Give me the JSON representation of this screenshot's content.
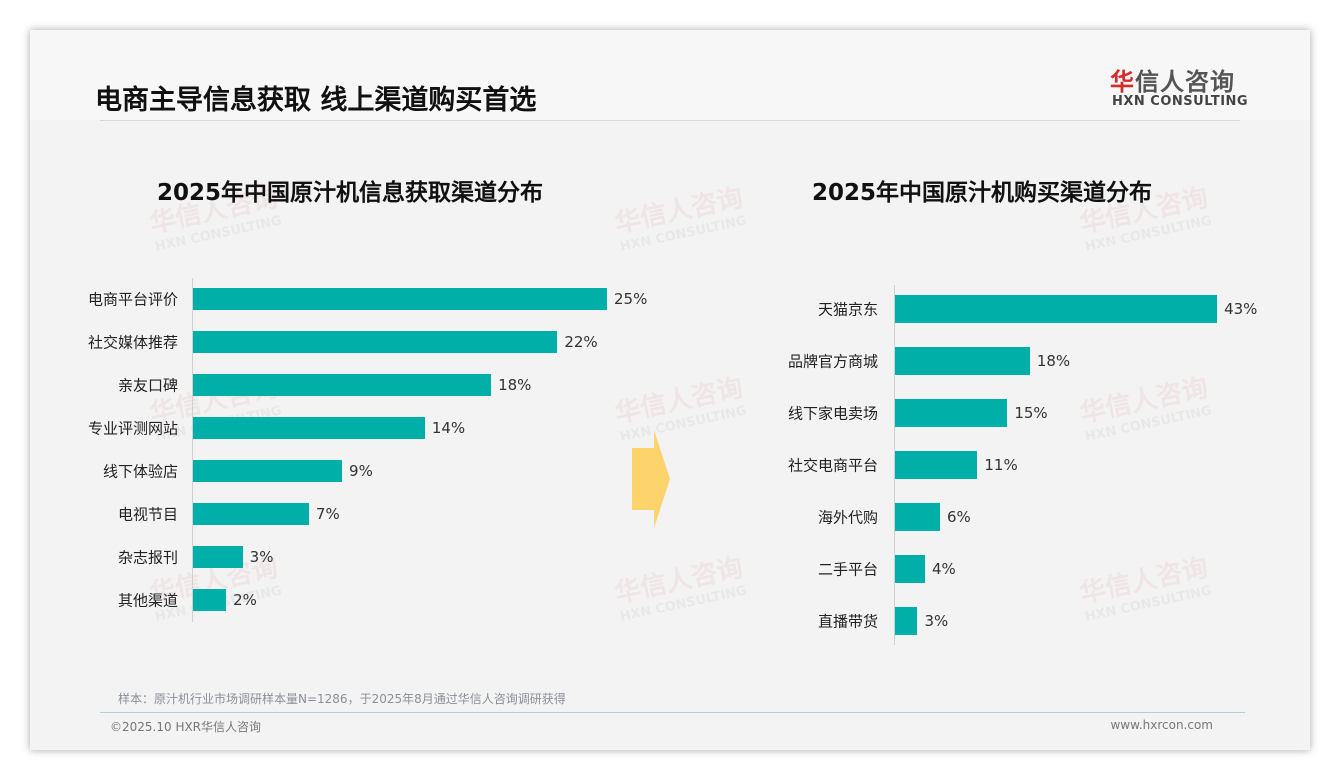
{
  "header": {
    "title": "电商主导信息获取 线上渠道购买首选",
    "logo_cn_first": "华",
    "logo_cn_rest": "信人咨询",
    "logo_en": "HXN CONSULTING"
  },
  "watermark": {
    "cn": "华信人咨询",
    "en": "HXN CONSULTING"
  },
  "chart_data": [
    {
      "type": "bar",
      "orientation": "horizontal",
      "title": "2025年中国原汁机信息获取渠道分布",
      "categories": [
        "电商平台评价",
        "社交媒体推荐",
        "亲友口碑",
        "专业评测网站",
        "线下体验店",
        "电视节目",
        "杂志报刊",
        "其他渠道"
      ],
      "values": [
        25,
        22,
        18,
        14,
        9,
        7,
        3,
        2
      ],
      "labels": [
        "25%",
        "22%",
        "18%",
        "14%",
        "9%",
        "7%",
        "3%",
        "2%"
      ],
      "unit": "%",
      "color": "#00b0a8"
    },
    {
      "type": "bar",
      "orientation": "horizontal",
      "title": "2025年中国原汁机购买渠道分布",
      "categories": [
        "天猫京东",
        "品牌官方商城",
        "线下家电卖场",
        "社交电商平台",
        "海外代购",
        "二手平台",
        "直播带货"
      ],
      "values": [
        43,
        18,
        15,
        11,
        6,
        4,
        3
      ],
      "labels": [
        "43%",
        "18%",
        "15%",
        "11%",
        "6%",
        "4%",
        "3%"
      ],
      "unit": "%",
      "color": "#00b0a8"
    }
  ],
  "arrow_color": "#fdd36b",
  "footer": {
    "note": "样本：原汁机行业市场调研样本量N=1286，于2025年8月通过华信人咨询调研获得",
    "copyright": "©2025.10 HXR华信人咨询",
    "website": "www.hxrcon.com"
  }
}
